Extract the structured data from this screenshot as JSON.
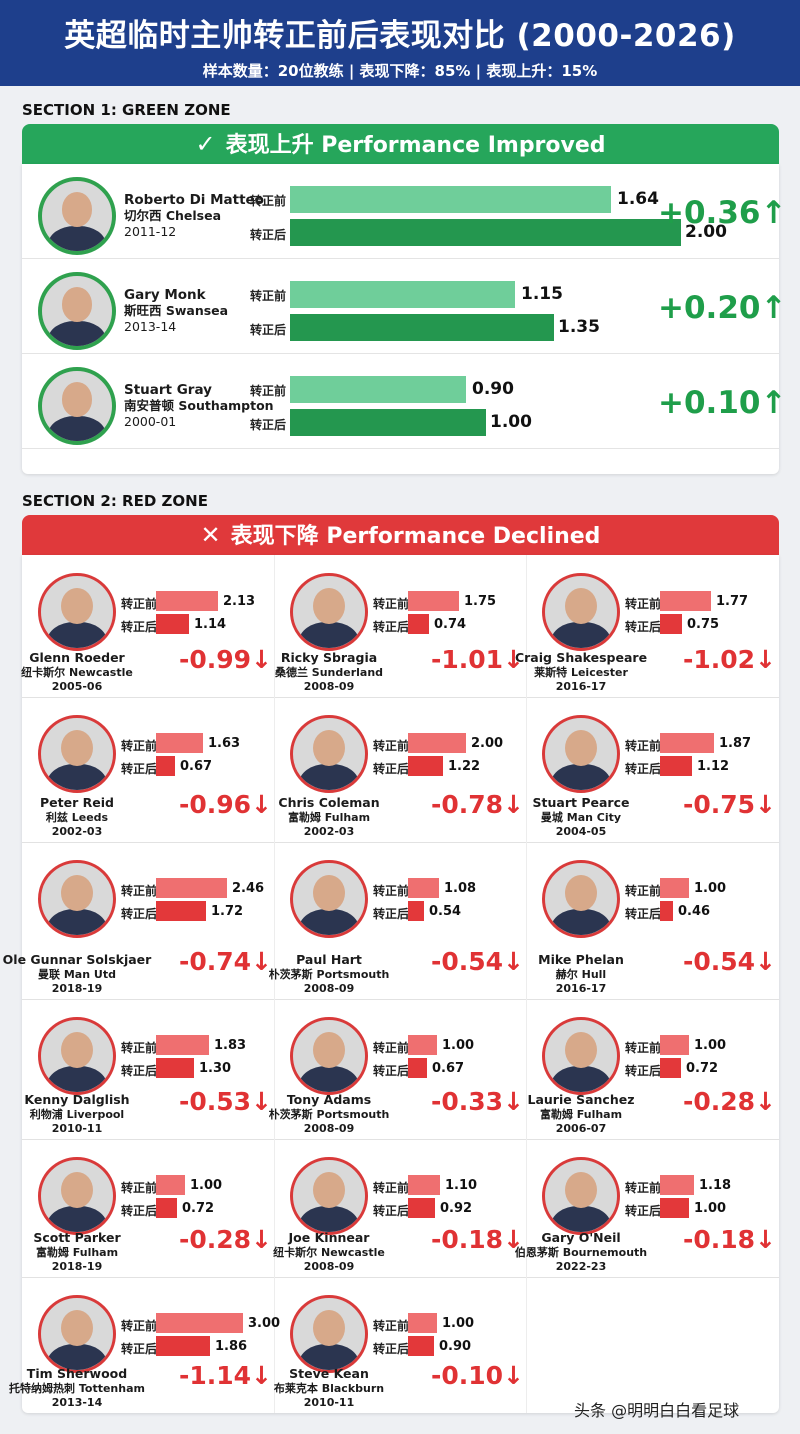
{
  "title": "英超临时主帅转正前后表现对比 (2000-2026)",
  "subtitle": "样本数量：20位教练 | 表现下降：85% | 表现上升：15%",
  "labels": {
    "before": "转正前",
    "after": "转正后"
  },
  "section1": {
    "label": "SECTION 1: GREEN ZONE",
    "banner_mark": "✓",
    "banner": "表现上升 Performance Improved"
  },
  "section2": {
    "label": "SECTION 2: RED ZONE",
    "banner_mark": "✕",
    "banner": "表现下降 Performance Declined"
  },
  "watermark": "头条 @明明白白看足球",
  "colors": {
    "green": "#26a65b",
    "red": "#e0393b",
    "header": "#1e3f8c"
  },
  "chart_data": {
    "type": "bar",
    "green": [
      {
        "name": "Roberto Di Matteo",
        "club": "切尔西 Chelsea",
        "season": "2011-12",
        "before": 1.64,
        "after": 2.0,
        "delta": "+0.36",
        "arrow": "↑"
      },
      {
        "name": "Gary Monk",
        "club": "斯旺西 Swansea",
        "season": "2013-14",
        "before": 1.15,
        "after": 1.35,
        "delta": "+0.20",
        "arrow": "↑"
      },
      {
        "name": "Stuart Gray",
        "club": "南安普顿 Southampton",
        "season": "2000-01",
        "before": 0.9,
        "after": 1.0,
        "delta": "+0.10",
        "arrow": "↑"
      }
    ],
    "red": [
      {
        "name": "Glenn Roeder",
        "club": "纽卡斯尔 Newcastle",
        "season": "2005-06",
        "before": 2.13,
        "after": 1.14,
        "delta": "-0.99",
        "arrow": "↓"
      },
      {
        "name": "Ricky Sbragia",
        "club": "桑德兰 Sunderland",
        "season": "2008-09",
        "before": 1.75,
        "after": 0.74,
        "delta": "-1.01",
        "arrow": "↓"
      },
      {
        "name": "Craig Shakespeare",
        "club": "莱斯特 Leicester",
        "season": "2016-17",
        "before": 1.77,
        "after": 0.75,
        "delta": "-1.02",
        "arrow": "↓"
      },
      {
        "name": "Peter Reid",
        "club": "利兹 Leeds",
        "season": "2002-03",
        "before": 1.63,
        "after": 0.67,
        "delta": "-0.96",
        "arrow": "↓"
      },
      {
        "name": "Chris Coleman",
        "club": "富勒姆 Fulham",
        "season": "2002-03",
        "before": 2.0,
        "after": 1.22,
        "delta": "-0.78",
        "arrow": "↓"
      },
      {
        "name": "Stuart Pearce",
        "club": "曼城 Man City",
        "season": "2004-05",
        "before": 1.87,
        "after": 1.12,
        "delta": "-0.75",
        "arrow": "↓"
      },
      {
        "name": "Ole Gunnar Solskjaer",
        "club": "曼联 Man Utd",
        "season": "2018-19",
        "before": 2.46,
        "after": 1.72,
        "delta": "-0.74",
        "arrow": "↓"
      },
      {
        "name": "Paul Hart",
        "club": "朴茨茅斯 Portsmouth",
        "season": "2008-09",
        "before": 1.08,
        "after": 0.54,
        "delta": "-0.54",
        "arrow": "↓"
      },
      {
        "name": "Mike Phelan",
        "club": "赫尔 Hull",
        "season": "2016-17",
        "before": 1.0,
        "after": 0.46,
        "delta": "-0.54",
        "arrow": "↓"
      },
      {
        "name": "Kenny Dalglish",
        "club": "利物浦 Liverpool",
        "season": "2010-11",
        "before": 1.83,
        "after": 1.3,
        "delta": "-0.53",
        "arrow": "↓"
      },
      {
        "name": "Tony Adams",
        "club": "朴茨茅斯 Portsmouth",
        "season": "2008-09",
        "before": 1.0,
        "after": 0.67,
        "delta": "-0.33",
        "arrow": "↓"
      },
      {
        "name": "Laurie Sanchez",
        "club": "富勒姆 Fulham",
        "season": "2006-07",
        "before": 1.0,
        "after": 0.72,
        "delta": "-0.28",
        "arrow": "↓"
      },
      {
        "name": "Scott Parker",
        "club": "富勒姆 Fulham",
        "season": "2018-19",
        "before": 1.0,
        "after": 0.72,
        "delta": "-0.28",
        "arrow": "↓"
      },
      {
        "name": "Joe Kinnear",
        "club": "纽卡斯尔 Newcastle",
        "season": "2008-09",
        "before": 1.1,
        "after": 0.92,
        "delta": "-0.18",
        "arrow": "↓"
      },
      {
        "name": "Gary O'Neil",
        "club": "伯恩茅斯 Bournemouth",
        "season": "2022-23",
        "before": 1.18,
        "after": 1.0,
        "delta": "-0.18",
        "arrow": "↓"
      },
      {
        "name": "Tim Sherwood",
        "club": "托特纳姆热刺 Tottenham",
        "season": "2013-14",
        "before": 3.0,
        "after": 1.86,
        "delta": "-1.14",
        "arrow": "↓"
      },
      {
        "name": "Steve Kean",
        "club": "布莱克本 Blackburn",
        "season": "2010-11",
        "before": 1.0,
        "after": 0.9,
        "delta": "-0.10",
        "arrow": "↓"
      }
    ]
  }
}
